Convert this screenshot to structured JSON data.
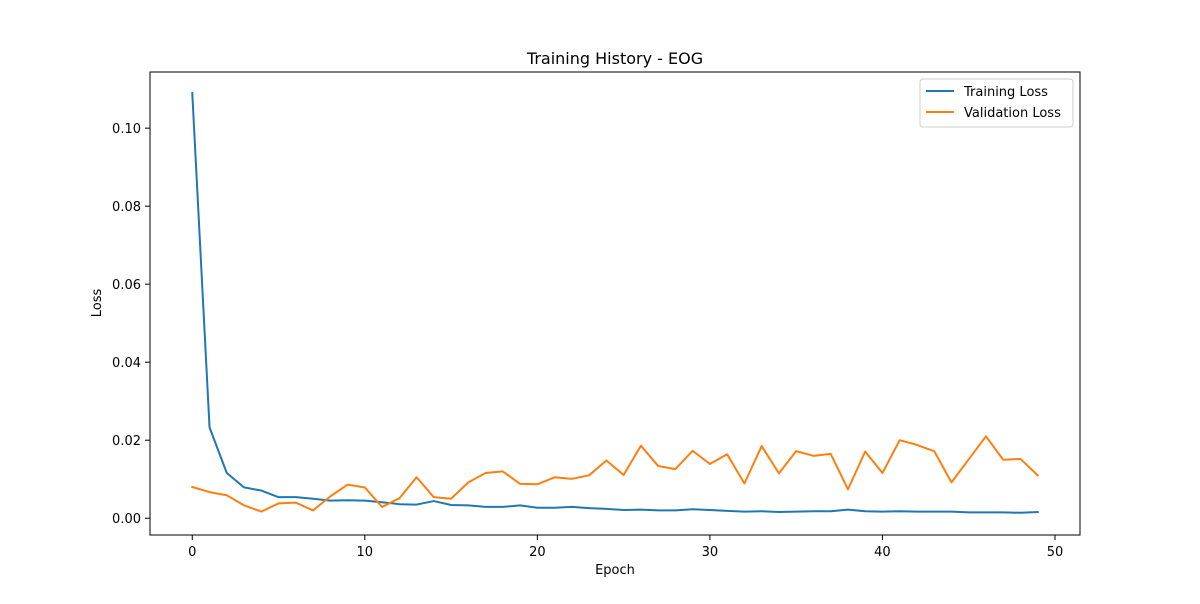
{
  "chart_data": {
    "type": "line",
    "title": "Training History - EOG",
    "xlabel": "Epoch",
    "ylabel": "Loss",
    "xlim": [
      -2.45,
      51.45
    ],
    "ylim": [
      -0.0043,
      0.1144
    ],
    "xticks": [
      0,
      10,
      20,
      30,
      40,
      50
    ],
    "xtick_labels": [
      "0",
      "10",
      "20",
      "30",
      "40",
      "50"
    ],
    "yticks": [
      0.0,
      0.02,
      0.04,
      0.06,
      0.08,
      0.1
    ],
    "ytick_labels": [
      "0.00",
      "0.02",
      "0.04",
      "0.06",
      "0.08",
      "0.10"
    ],
    "grid": false,
    "legend_position": "top-right",
    "x": [
      0,
      1,
      2,
      3,
      4,
      5,
      6,
      7,
      8,
      9,
      10,
      11,
      12,
      13,
      14,
      15,
      16,
      17,
      18,
      19,
      20,
      21,
      22,
      23,
      24,
      25,
      26,
      27,
      28,
      29,
      30,
      31,
      32,
      33,
      34,
      35,
      36,
      37,
      38,
      39,
      40,
      41,
      42,
      43,
      44,
      45,
      46,
      47,
      48,
      49
    ],
    "series": [
      {
        "name": "Training Loss",
        "color": "#1f77b4",
        "values": [
          0.109,
          0.0233,
          0.0116,
          0.0079,
          0.0071,
          0.0054,
          0.0054,
          0.005,
          0.0045,
          0.0046,
          0.0045,
          0.0041,
          0.0036,
          0.0035,
          0.0044,
          0.0034,
          0.0033,
          0.0029,
          0.0029,
          0.0033,
          0.0027,
          0.0027,
          0.0029,
          0.0026,
          0.0024,
          0.0021,
          0.0022,
          0.002,
          0.002,
          0.0023,
          0.0021,
          0.0019,
          0.0017,
          0.0018,
          0.0016,
          0.0017,
          0.0018,
          0.0018,
          0.0022,
          0.0018,
          0.0017,
          0.0018,
          0.0017,
          0.0017,
          0.0017,
          0.0015,
          0.0015,
          0.0015,
          0.0014,
          0.0016
        ]
      },
      {
        "name": "Validation Loss",
        "color": "#ff7f0e",
        "values": [
          0.008,
          0.0067,
          0.0059,
          0.0033,
          0.0017,
          0.0038,
          0.004,
          0.002,
          0.0056,
          0.0086,
          0.0079,
          0.0029,
          0.0051,
          0.0105,
          0.0054,
          0.005,
          0.0092,
          0.0116,
          0.012,
          0.0088,
          0.0087,
          0.0105,
          0.0101,
          0.011,
          0.0148,
          0.0111,
          0.0186,
          0.0134,
          0.0126,
          0.0173,
          0.0139,
          0.0164,
          0.0089,
          0.0185,
          0.0115,
          0.0172,
          0.016,
          0.0165,
          0.0074,
          0.0171,
          0.0116,
          0.02,
          0.0188,
          0.0172,
          0.0092,
          0.0151,
          0.021,
          0.015,
          0.0152,
          0.011
        ]
      }
    ]
  }
}
